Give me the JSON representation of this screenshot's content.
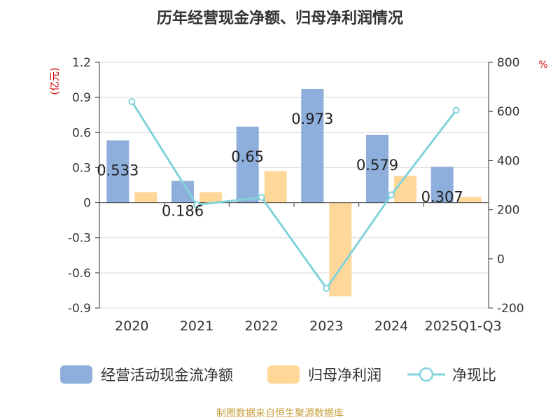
{
  "colors": {
    "cash": "#8eaedb",
    "profit": "#ffd899",
    "ratio": "#82d2dc",
    "source": "#c8a040",
    "unit": "#cc0000"
  },
  "chart_data": {
    "type": "bar",
    "title": "历年经营现金净额、归母净利润情况",
    "categories": [
      "2020",
      "2021",
      "2022",
      "2023",
      "2024",
      "2025Q1-Q3"
    ],
    "series": [
      {
        "name": "经营活动现金流净额",
        "type": "bar",
        "axis": "left",
        "values": [
          0.533,
          0.186,
          0.65,
          0.973,
          0.579,
          0.307
        ],
        "labels": [
          "0.533",
          "0.186",
          "0.65",
          "0.973",
          "0.579",
          "0.307"
        ]
      },
      {
        "name": "归母净利润",
        "type": "bar",
        "axis": "left",
        "values": [
          0.09,
          0.09,
          0.27,
          -0.8,
          0.23,
          0.05
        ]
      },
      {
        "name": "净现比",
        "type": "line",
        "axis": "right",
        "values": [
          640,
          220,
          250,
          -120,
          260,
          605
        ]
      }
    ],
    "y_left": {
      "unit": "(亿元)",
      "min": -0.9,
      "max": 1.2,
      "ticks": [
        1.2,
        0.9,
        0.6,
        0.3,
        0,
        -0.3,
        -0.6,
        -0.9
      ],
      "tick_labels": [
        "1.2",
        "0.9",
        "0.6",
        "0.3",
        "0",
        "-0.3",
        "-0.6",
        "-0.9"
      ]
    },
    "y_right": {
      "unit": "%",
      "min": -200,
      "max": 800,
      "ticks": [
        800,
        600,
        400,
        200,
        0,
        -200
      ],
      "tick_labels": [
        "800",
        "600",
        "400",
        "200",
        "0",
        "-200"
      ]
    },
    "grid": true,
    "legend_position": "bottom",
    "source": "制图数据来自恒生聚源数据库"
  }
}
